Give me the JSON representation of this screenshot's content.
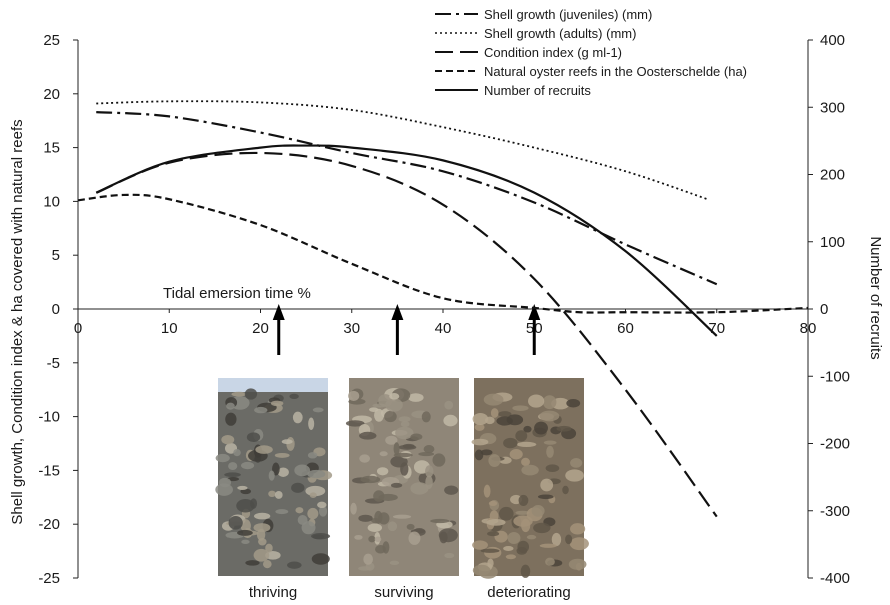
{
  "chart_data": {
    "type": "line",
    "axis_note": "Tidal emersion time %",
    "xlim": [
      0,
      80
    ],
    "x_ticks": [
      0,
      10,
      20,
      30,
      40,
      50,
      60,
      70,
      80
    ],
    "ylabel_left": "Shell growth, Condition index & ha covered with natural reefs",
    "ylim_left": [
      -25,
      25
    ],
    "y_ticks_left": [
      -25,
      -20,
      -15,
      -10,
      -5,
      0,
      5,
      10,
      15,
      20,
      25
    ],
    "ylabel_right": "Number of recruits",
    "ylim_right": [
      -400,
      400
    ],
    "y_ticks_right": [
      -400,
      -300,
      -200,
      -100,
      0,
      100,
      200,
      300,
      400
    ],
    "series": [
      {
        "name": "Shell growth (juveniles) (mm)",
        "axis": "left",
        "dash": "dashdot",
        "x": [
          2,
          10,
          20,
          30,
          40,
          50,
          60,
          70
        ],
        "y": [
          18.3,
          17.9,
          16.4,
          14.5,
          12.8,
          9.9,
          6.0,
          2.3
        ]
      },
      {
        "name": "Shell growth (adults) (mm)",
        "axis": "left",
        "dash": "dotted",
        "x": [
          2,
          10,
          20,
          30,
          40,
          50,
          60,
          69
        ],
        "y": [
          19.1,
          19.3,
          19.2,
          18.5,
          16.9,
          15.0,
          12.8,
          10.2
        ]
      },
      {
        "name": "Condition index (g ml-1)",
        "axis": "left",
        "dash": "longdash",
        "x": [
          2,
          10,
          20,
          30,
          40,
          50,
          60,
          70
        ],
        "y": [
          10.8,
          13.6,
          14.5,
          13.3,
          9.7,
          2.8,
          -7.5,
          -19.3
        ]
      },
      {
        "name": "Natural oyster reefs in the Oosterschelde (ha)",
        "axis": "left",
        "dash": "shortdash",
        "x": [
          0,
          5,
          10,
          20,
          30,
          40,
          50,
          55,
          60,
          70,
          80
        ],
        "y": [
          10.1,
          10.6,
          10.2,
          7.8,
          4.2,
          1.0,
          0.1,
          -0.3,
          -0.3,
          -0.3,
          0.1
        ]
      },
      {
        "name": "Number of recruits",
        "axis": "right",
        "dash": "solid",
        "x": [
          2,
          10,
          20,
          25,
          30,
          40,
          50,
          60,
          70
        ],
        "y": [
          173,
          219,
          240,
          243,
          240,
          221,
          173,
          86,
          -40
        ]
      }
    ],
    "arrows_at_x": [
      22,
      35,
      50
    ],
    "photos": [
      {
        "caption": "thriving",
        "tone": "rocky"
      },
      {
        "caption": "surviving",
        "tone": "shells"
      },
      {
        "caption": "deteriorating",
        "tone": "shells-dark"
      }
    ],
    "legend_position": "top-right"
  }
}
